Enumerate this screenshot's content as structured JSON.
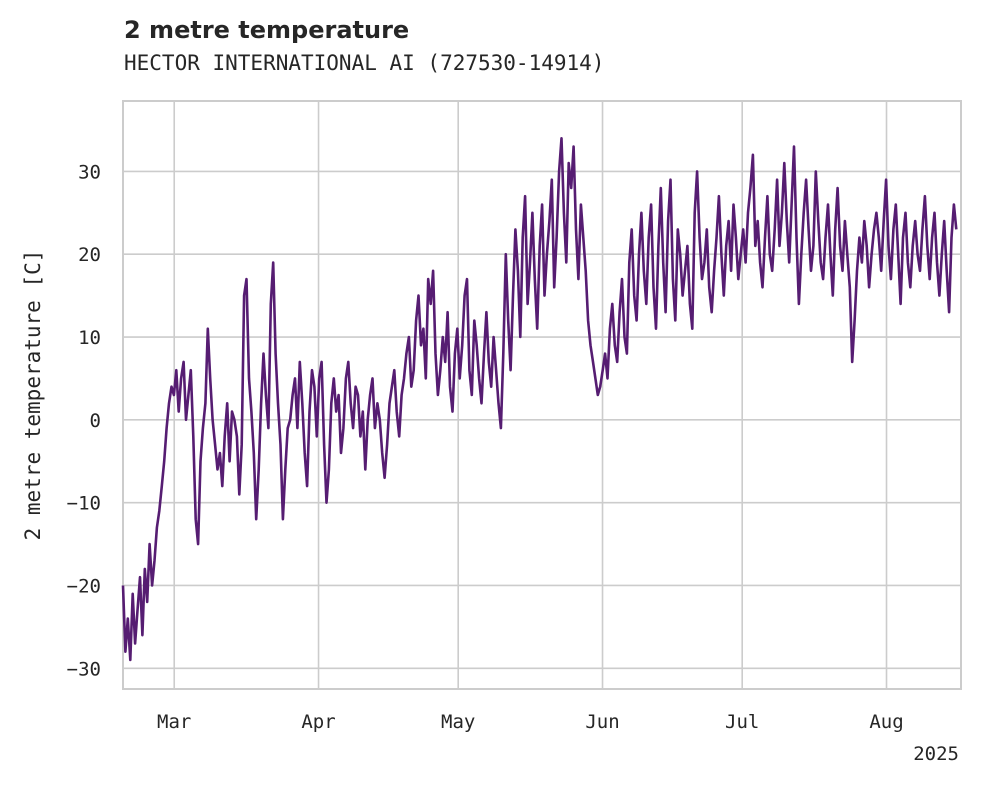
{
  "title": "2 metre temperature",
  "subtitle": "HECTOR INTERNATIONAL AI (727530-14914)",
  "chart_data": {
    "type": "line",
    "title": "2 metre temperature",
    "subtitle": "HECTOR INTERNATIONAL AI (727530-14914)",
    "ylabel": "2 metre temperature [C]",
    "xlabel": "",
    "x_tick_labels": [
      "Mar",
      "Apr",
      "May",
      "Jun",
      "Jul",
      "Aug"
    ],
    "x_tick_dates": [
      "2025-03-01",
      "2025-04-01",
      "2025-05-01",
      "2025-06-01",
      "2025-07-01",
      "2025-08-01"
    ],
    "x_offset_label": "2025",
    "xlim": [
      "2025-02-18",
      "2025-08-17"
    ],
    "ylim": [
      -32.5,
      38.5
    ],
    "y_ticks": [
      -30,
      -20,
      -10,
      0,
      10,
      20,
      30
    ],
    "grid": true,
    "line_color": "#561d72",
    "series": [
      {
        "x_start": "2025-02-18",
        "x_end": "2025-08-16",
        "values": [
          -20,
          -28,
          -24,
          -29,
          -21,
          -27,
          -23,
          -19,
          -26,
          -18,
          -22,
          -15,
          -20,
          -17,
          -13,
          -11,
          -8,
          -5,
          -1,
          2,
          4,
          3,
          6,
          1,
          5,
          7,
          0,
          3,
          6,
          -2,
          -12,
          -15,
          -5,
          -1,
          2,
          11,
          5,
          0,
          -3,
          -6,
          -4,
          -8,
          -2,
          2,
          -5,
          1,
          0,
          -2,
          -9,
          -3,
          15,
          17,
          5,
          1,
          -4,
          -12,
          -6,
          2,
          8,
          3,
          -1,
          14,
          19,
          8,
          2,
          -3,
          -12,
          -6,
          -1,
          0,
          3,
          5,
          -1,
          7,
          2,
          -4,
          -8,
          1,
          6,
          4,
          -2,
          5,
          7,
          -3,
          -10,
          -6,
          2,
          5,
          1,
          3,
          -4,
          -1,
          5,
          7,
          2,
          -1,
          4,
          3,
          -2,
          1,
          -6,
          0,
          3,
          5,
          -1,
          2,
          0,
          -4,
          -7,
          -3,
          2,
          4,
          6,
          1,
          -2,
          3,
          5,
          8,
          10,
          4,
          6,
          12,
          15,
          9,
          11,
          5,
          17,
          14,
          18,
          8,
          3,
          6,
          10,
          7,
          13,
          4,
          1,
          8,
          11,
          5,
          9,
          15,
          17,
          6,
          3,
          12,
          9,
          5,
          2,
          8,
          13,
          7,
          4,
          10,
          6,
          2,
          -1,
          8,
          20,
          12,
          6,
          15,
          23,
          18,
          10,
          22,
          27,
          14,
          19,
          25,
          17,
          11,
          21,
          26,
          15,
          20,
          24,
          29,
          16,
          22,
          30,
          34,
          25,
          19,
          31,
          28,
          33,
          23,
          17,
          26,
          22,
          18,
          12,
          9,
          7,
          5,
          3,
          4,
          6,
          8,
          5,
          11,
          14,
          9,
          7,
          13,
          17,
          10,
          8,
          19,
          23,
          15,
          12,
          20,
          25,
          18,
          14,
          22,
          26,
          16,
          11,
          21,
          28,
          19,
          13,
          24,
          29,
          17,
          12,
          23,
          20,
          15,
          18,
          21,
          14,
          11,
          25,
          30,
          22,
          17,
          19,
          23,
          16,
          13,
          18,
          22,
          27,
          20,
          15,
          21,
          24,
          18,
          26,
          22,
          17,
          20,
          23,
          19,
          25,
          28,
          32,
          21,
          24,
          19,
          16,
          22,
          27,
          20,
          18,
          23,
          29,
          21,
          25,
          31,
          24,
          19,
          26,
          33,
          22,
          14,
          20,
          25,
          29,
          23,
          18,
          21,
          30,
          24,
          19,
          17,
          22,
          26,
          20,
          15,
          23,
          28,
          21,
          18,
          24,
          20,
          16,
          7,
          12,
          18,
          22,
          19,
          24,
          21,
          16,
          20,
          23,
          25,
          22,
          18,
          24,
          29,
          21,
          17,
          23,
          26,
          20,
          14,
          22,
          25,
          19,
          16,
          21,
          24,
          20,
          18,
          23,
          27,
          21,
          17,
          22,
          25,
          19,
          15,
          20,
          24,
          18,
          13,
          22,
          26,
          23
        ]
      }
    ]
  }
}
